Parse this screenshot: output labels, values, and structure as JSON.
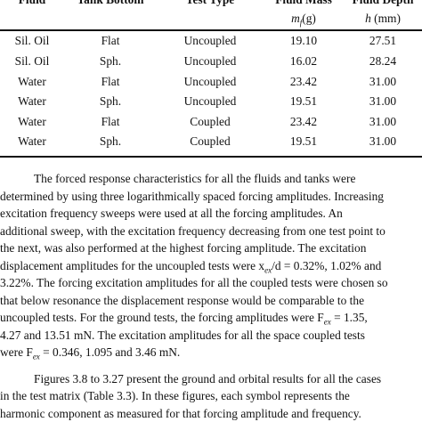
{
  "table": {
    "headers": [
      "Fluid",
      "Tank Bottom",
      "Test Type",
      "Fluid Mass",
      "Fluid Depth"
    ],
    "subheaders": {
      "mass": "(g)",
      "mass_sym": "m",
      "mass_sub": "f",
      "depth": "(mm)",
      "depth_sym": "h"
    },
    "rows": [
      [
        "Sil. Oil",
        "Flat",
        "Uncoupled",
        "19.10",
        "27.51"
      ],
      [
        "Sil. Oil",
        "Sph.",
        "Uncoupled",
        "16.02",
        "28.24"
      ],
      [
        "Water",
        "Flat",
        "Uncoupled",
        "23.42",
        "31.00"
      ],
      [
        "Water",
        "Sph.",
        "Uncoupled",
        "19.51",
        "31.00"
      ],
      [
        "Water",
        "Flat",
        "Coupled",
        "23.42",
        "31.00"
      ],
      [
        "Water",
        "Sph.",
        "Coupled",
        "19.51",
        "31.00"
      ]
    ]
  },
  "text": {
    "p1": [
      "The forced response characteristics for all the fluids and tanks were",
      "determined by using three logarithmically spaced forcing amplitudes. Increasing",
      "excitation frequency sweeps were used at all the forcing amplitudes. An",
      "additional sweep, with the excitation frequency decreasing from one test point to",
      "the next, was also performed at the highest forcing amplitude. The excitation",
      "displacement amplitudes for the uncoupled tests were x",
      "ex",
      "/d = 0.32%, 1.02% and",
      "3.22%. The forcing excitation amplitudes for all the coupled tests were chosen so",
      "that below resonance the displacement response would be comparable to the",
      "uncoupled tests. For the ground tests, the forcing amplitudes were F",
      "ex",
      " = 1.35,",
      "4.27 and 13.51 mN. The excitation amplitudes for all the space coupled tests",
      "were F",
      "ex",
      " = 0.346, 1.095 and 3.46 mN."
    ],
    "p2": [
      "Figures 3.8 to 3.27 present the ground and orbital results for all the cases",
      "in the test matrix (Table 3.3). In these figures, each symbol represents the",
      "harmonic component as measured for that forcing amplitude and frequency."
    ]
  }
}
